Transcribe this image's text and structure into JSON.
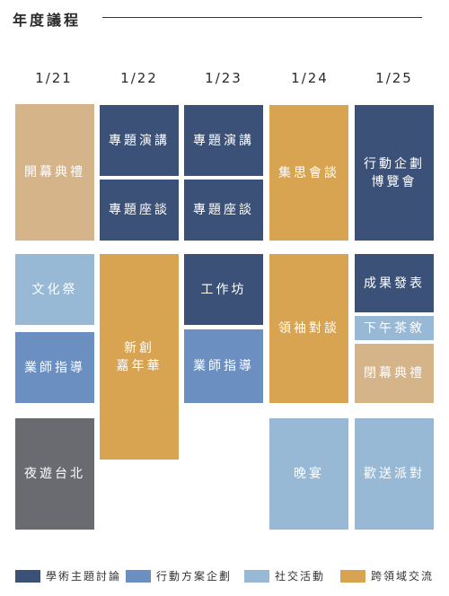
{
  "header": {
    "title": "年度議程"
  },
  "colors": {
    "academic": "#3b5178",
    "action": "#6b8fc1",
    "social": "#98b9d6",
    "cross": "#d9a452",
    "ceremony": "#d6b48a",
    "night": "#6a6b70"
  },
  "dates": [
    "1/21",
    "1/22",
    "1/23",
    "1/24",
    "1/25"
  ],
  "schedule": {
    "d21": {
      "opening": "開幕典禮",
      "culture_festival": "文化祭",
      "mentor_guidance": "業師指導",
      "night_tour": "夜遊台北"
    },
    "d22": {
      "keynote": "專題演講",
      "seminar": "專題座談",
      "carnival": "新創\n嘉年華"
    },
    "d23": {
      "keynote": "專題演講",
      "seminar": "專題座談",
      "workshop": "工作坊",
      "mentor_guidance": "業師指導"
    },
    "d24": {
      "idea_talk": "集思會談",
      "leader_dialogue": "領袖對談",
      "dinner": "晚宴"
    },
    "d25": {
      "expo": "行動企劃\n博覽會",
      "results": "成果發表",
      "tea": "下午茶敘",
      "closing": "閉幕典禮",
      "farewell": "歡送派對"
    }
  },
  "legend": [
    {
      "label": "學術主題討論",
      "color": "#3b5178"
    },
    {
      "label": "行動方案企劃",
      "color": "#6b8fc1"
    },
    {
      "label": "社交活動",
      "color": "#98b9d6"
    },
    {
      "label": "跨領域交流",
      "color": "#d9a452"
    }
  ]
}
